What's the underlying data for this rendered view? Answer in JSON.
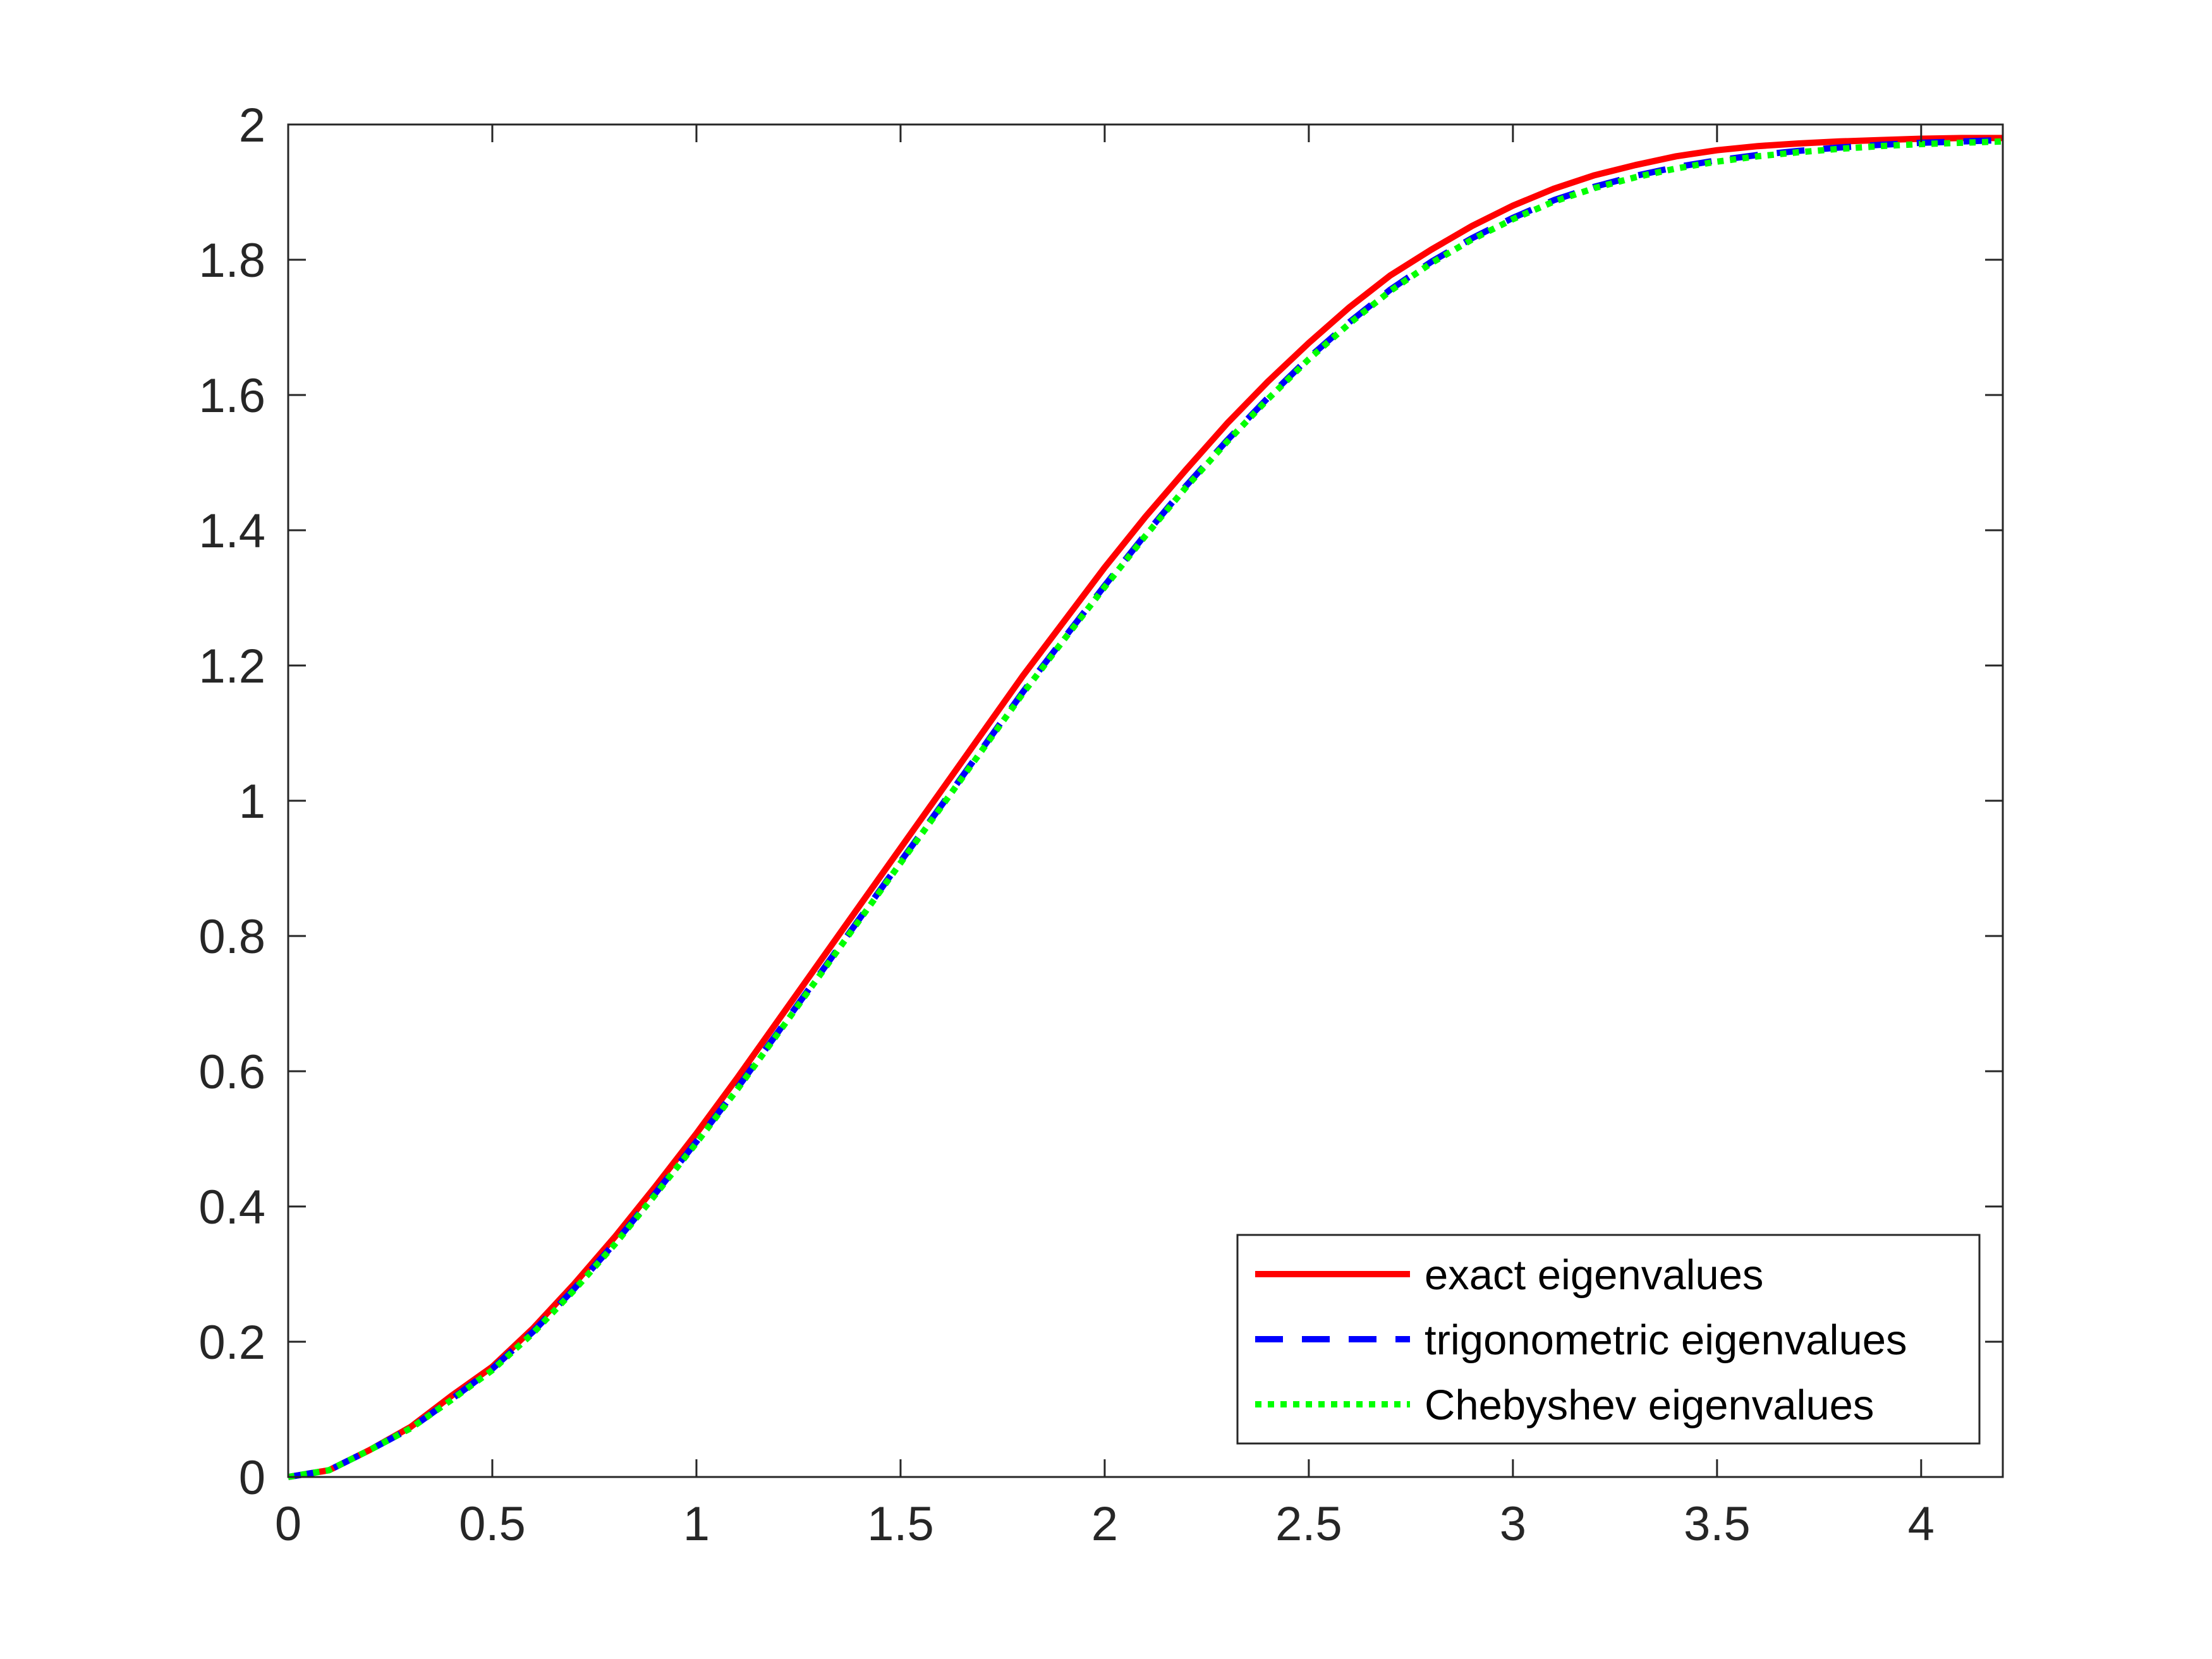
{
  "chart_data": {
    "type": "line",
    "title": "",
    "xlabel": "",
    "ylabel": "",
    "xlim": [
      0,
      4.2
    ],
    "ylim": [
      0,
      2
    ],
    "xticks": [
      0,
      0.5,
      1,
      1.5,
      2,
      2.5,
      3,
      3.5,
      4
    ],
    "xtick_labels": [
      "0",
      "0.5",
      "1",
      "1.5",
      "2",
      "2.5",
      "3",
      "3.5",
      "4"
    ],
    "yticks": [
      0,
      0.2,
      0.4,
      0.6,
      0.8,
      1,
      1.2,
      1.4,
      1.6,
      1.8,
      2
    ],
    "ytick_labels": [
      "0",
      "0.2",
      "0.4",
      "0.6",
      "0.8",
      "1",
      "1.2",
      "1.4",
      "1.6",
      "1.8",
      "2"
    ],
    "grid": false,
    "legend_position": "bottom-right",
    "x": [
      0,
      0.1,
      0.2,
      0.3,
      0.4,
      0.5,
      0.6,
      0.7,
      0.8,
      0.9,
      1.0,
      1.1,
      1.2,
      1.3,
      1.4,
      1.5,
      1.6,
      1.7,
      1.8,
      1.9,
      2.0,
      2.1,
      2.2,
      2.3,
      2.4,
      2.5,
      2.6,
      2.7,
      2.8,
      2.9,
      3.0,
      3.1,
      3.2,
      3.3,
      3.4,
      3.5,
      3.6,
      3.7,
      3.8,
      3.9,
      4.0,
      4.1,
      4.2
    ],
    "series": [
      {
        "name": "exact eigenvalues",
        "color": "#ff0000",
        "style": "solid",
        "values": [
          0,
          0.01,
          0.04,
          0.074,
          0.12,
          0.163,
          0.22,
          0.285,
          0.355,
          0.43,
          0.508,
          0.59,
          0.675,
          0.76,
          0.845,
          0.93,
          1.015,
          1.1,
          1.185,
          1.265,
          1.345,
          1.42,
          1.49,
          1.558,
          1.62,
          1.677,
          1.73,
          1.777,
          1.815,
          1.85,
          1.88,
          1.905,
          1.925,
          1.94,
          1.953,
          1.962,
          1.968,
          1.972,
          1.975,
          1.977,
          1.979,
          1.98,
          1.98
        ]
      },
      {
        "name": "trigonometric eigenvalues",
        "color": "#0000ff",
        "style": "dashed",
        "values": [
          0,
          0.01,
          0.04,
          0.072,
          0.115,
          0.16,
          0.215,
          0.278,
          0.346,
          0.42,
          0.496,
          0.575,
          0.658,
          0.742,
          0.826,
          0.91,
          0.993,
          1.077,
          1.161,
          1.24,
          1.318,
          1.394,
          1.466,
          1.533,
          1.596,
          1.655,
          1.708,
          1.756,
          1.797,
          1.832,
          1.862,
          1.888,
          1.908,
          1.924,
          1.937,
          1.947,
          1.955,
          1.961,
          1.966,
          1.97,
          1.973,
          1.975,
          1.977
        ]
      },
      {
        "name": "Chebyshev eigenvalues",
        "color": "#00ff00",
        "style": "dotted",
        "values": [
          0,
          0.01,
          0.04,
          0.072,
          0.114,
          0.158,
          0.213,
          0.276,
          0.344,
          0.418,
          0.494,
          0.573,
          0.656,
          0.74,
          0.824,
          0.908,
          0.991,
          1.075,
          1.159,
          1.238,
          1.316,
          1.392,
          1.464,
          1.531,
          1.594,
          1.653,
          1.706,
          1.754,
          1.795,
          1.83,
          1.86,
          1.886,
          1.906,
          1.922,
          1.935,
          1.945,
          1.953,
          1.959,
          1.964,
          1.968,
          1.971,
          1.973,
          1.975
        ]
      }
    ]
  }
}
